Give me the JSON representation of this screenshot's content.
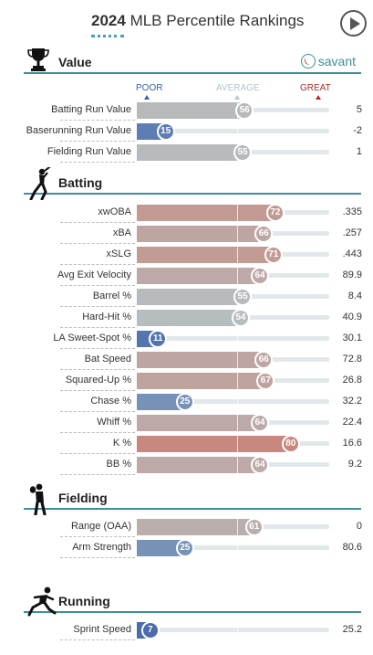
{
  "header": {
    "year": "2024",
    "title": "MLB Percentile Rankings"
  },
  "brand": {
    "name": "savant"
  },
  "legend": {
    "poor": "POOR",
    "average": "AVERAGE",
    "great": "GREAT"
  },
  "colors": {
    "teal": "#3d8f99",
    "poor": "#3a5ea8",
    "great": "#b02a2a",
    "average": "#b3c5c9"
  },
  "sections": {
    "value": {
      "title": "Value",
      "icon": "trophy-icon",
      "rows": [
        {
          "label": "Batting Run Value",
          "percentile": 56,
          "value": "5"
        },
        {
          "label": "Baserunning Run Value",
          "percentile": 15,
          "value": "-2"
        },
        {
          "label": "Fielding Run Value",
          "percentile": 55,
          "value": "1"
        }
      ]
    },
    "batting": {
      "title": "Batting",
      "icon": "batter-icon",
      "rows": [
        {
          "label": "xwOBA",
          "percentile": 72,
          "value": ".335"
        },
        {
          "label": "xBA",
          "percentile": 66,
          "value": ".257"
        },
        {
          "label": "xSLG",
          "percentile": 71,
          "value": ".443"
        },
        {
          "label": "Avg Exit Velocity",
          "percentile": 64,
          "value": "89.9"
        },
        {
          "label": "Barrel %",
          "percentile": 55,
          "value": "8.4"
        },
        {
          "label": "Hard-Hit %",
          "percentile": 54,
          "value": "40.9"
        },
        {
          "label": "LA Sweet-Spot %",
          "percentile": 11,
          "value": "30.1"
        },
        {
          "label": "Bat Speed",
          "percentile": 66,
          "value": "72.8"
        },
        {
          "label": "Squared-Up %",
          "percentile": 67,
          "value": "26.8"
        },
        {
          "label": "Chase %",
          "percentile": 25,
          "value": "32.2"
        },
        {
          "label": "Whiff %",
          "percentile": 64,
          "value": "22.4"
        },
        {
          "label": "K %",
          "percentile": 80,
          "value": "16.6"
        },
        {
          "label": "BB %",
          "percentile": 64,
          "value": "9.2"
        }
      ]
    },
    "fielding": {
      "title": "Fielding",
      "icon": "fielder-icon",
      "rows": [
        {
          "label": "Range (OAA)",
          "percentile": 61,
          "value": "0"
        },
        {
          "label": "Arm Strength",
          "percentile": 25,
          "value": "80.6"
        }
      ]
    },
    "running": {
      "title": "Running",
      "icon": "runner-icon",
      "rows": [
        {
          "label": "Sprint Speed",
          "percentile": 7,
          "value": "25.2"
        }
      ]
    }
  }
}
